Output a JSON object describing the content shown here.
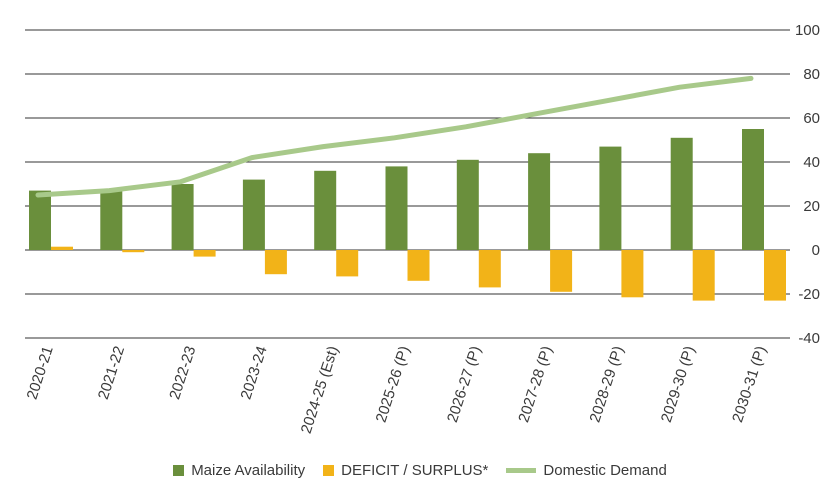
{
  "chart_data": {
    "type": "bar",
    "categories": [
      "2020-21",
      "2021-22",
      "2022-23",
      "2023-24",
      "2024-25 (Est)",
      "2025-26 (P)",
      "2026-27 (P)",
      "2027-28 (P)",
      "2028-29 (P)",
      "2029-30 (P)",
      "2030-31 (P)"
    ],
    "series": [
      {
        "name": "Maize Availability",
        "type": "bar",
        "color": "#6a8f3c",
        "values": [
          27,
          27,
          30,
          32,
          36,
          38,
          41,
          44,
          47,
          51,
          55
        ]
      },
      {
        "name": "DEFICIT / SURPLUS*",
        "type": "bar",
        "color": "#f2b318",
        "values": [
          1.5,
          -1,
          -3,
          -11,
          -12,
          -14,
          -17,
          -19,
          -21.5,
          -23,
          -23
        ]
      },
      {
        "name": "Domestic Demand",
        "type": "line",
        "color": "#a8c98a",
        "values": [
          25,
          27,
          31,
          42,
          47,
          51,
          56,
          62,
          68,
          74,
          78
        ]
      }
    ],
    "y_ticks": [
      100,
      80,
      60,
      40,
      20,
      0,
      -20,
      -40
    ],
    "ylim": [
      -40,
      100
    ],
    "grid": true,
    "legend_position": "bottom"
  }
}
